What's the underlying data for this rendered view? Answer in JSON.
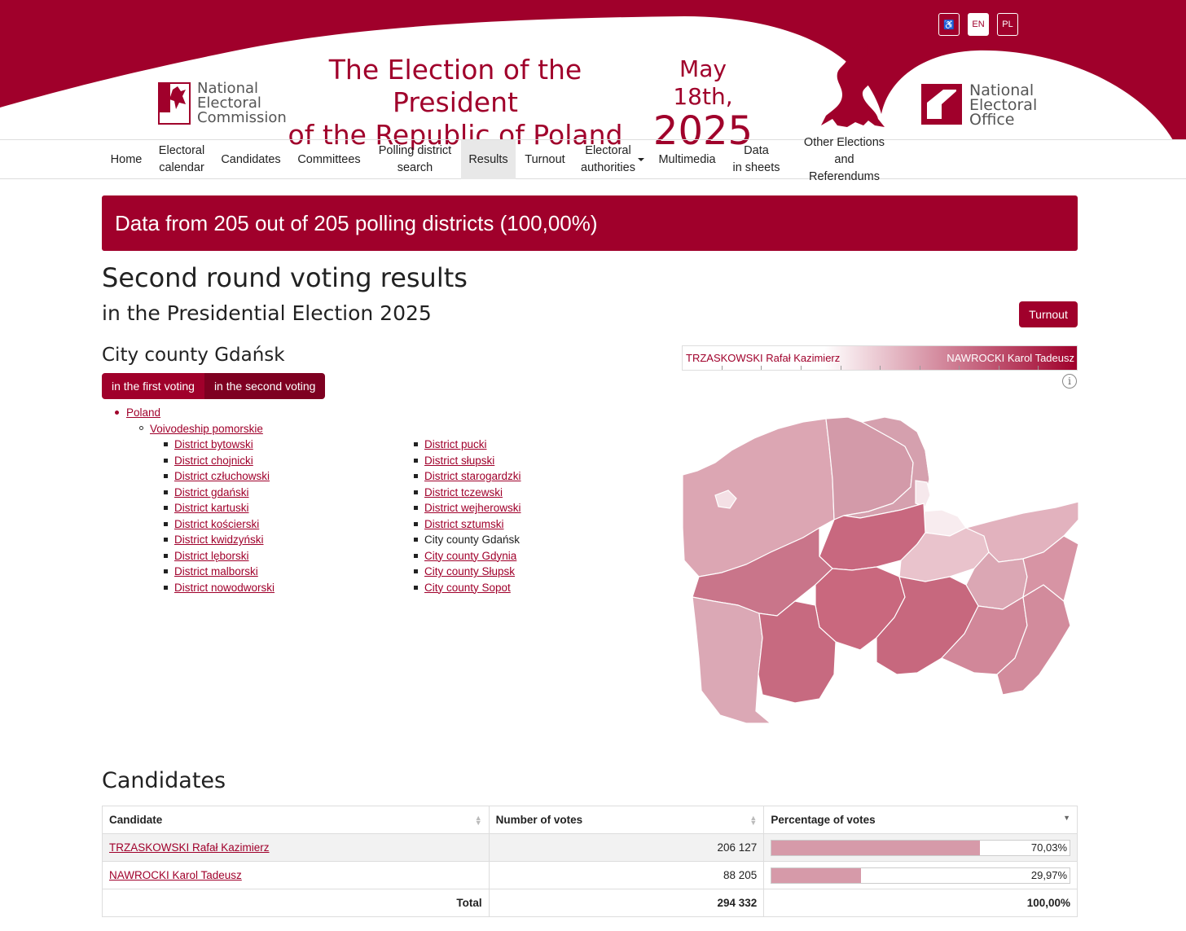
{
  "header": {
    "accessibility_label": "♿",
    "lang_en": "EN",
    "lang_pl": "PL",
    "pkw_logo": [
      "National",
      "Electoral",
      "Commission"
    ],
    "title_line1": "The Election of the President",
    "title_line2": "of the Republic of Poland",
    "date_line1": "May 18th,",
    "date_line2": "2025",
    "kbw_logo": [
      "National",
      "Electoral",
      "Office"
    ],
    "brand_color": "#a0002b"
  },
  "nav": {
    "home": "Home",
    "calendar_1": "Electoral",
    "calendar_2": "calendar",
    "candidates": "Candidates",
    "committees": "Committees",
    "search_1": "Polling district",
    "search_2": "search",
    "results": "Results",
    "turnout": "Turnout",
    "authorities_1": "Electoral",
    "authorities_2": "authorities",
    "multimedia": "Multimedia",
    "sheets_1": "Data",
    "sheets_2": "in sheets",
    "other_1": "Other Elections",
    "other_2": "and Referendums"
  },
  "banner": "Data from 205 out of 205 polling districts (100,00%)",
  "heading1": "Second round voting results",
  "heading2": "in the Presidential Election 2025",
  "turnout_button": "Turnout",
  "region_title": "City county Gdańsk",
  "round_tabs": {
    "first": "in the first voting",
    "second": "in the second voting"
  },
  "tree": {
    "country": "Poland",
    "voivodeship": "Voivodeship pomorskie",
    "col1": [
      "District bytowski",
      "District chojnicki",
      "District człuchowski",
      "District gdański",
      "District kartuski",
      "District kościerski",
      "District kwidzyński",
      "District lęborski",
      "District malborski",
      "District nowodworski"
    ],
    "col2": [
      "District pucki",
      "District słupski",
      "District starogardzki",
      "District tczewski",
      "District wejherowski",
      "District sztumski",
      "City county Gdańsk",
      "City county Gdynia",
      "City county Słupsk",
      "City county Sopot"
    ]
  },
  "legend": {
    "left": "TRZASKOWSKI Rafał Kazimierz",
    "right": "NAWROCKI Karol Tadeusz",
    "info_icon": "info-icon"
  },
  "candidates_heading": "Candidates",
  "table": {
    "headers": [
      "Candidate",
      "Number of votes",
      "Percentage of votes"
    ],
    "rows": [
      {
        "name": "TRZASKOWSKI Rafał Kazimierz",
        "votes": "206 127",
        "pct": "70,03%",
        "pct_value": 70.03
      },
      {
        "name": "NAWROCKI Karol Tadeusz",
        "votes": "88 205",
        "pct": "29,97%",
        "pct_value": 29.97
      }
    ],
    "total_label": "Total",
    "total_votes": "294 332",
    "total_pct": "100,00%"
  }
}
